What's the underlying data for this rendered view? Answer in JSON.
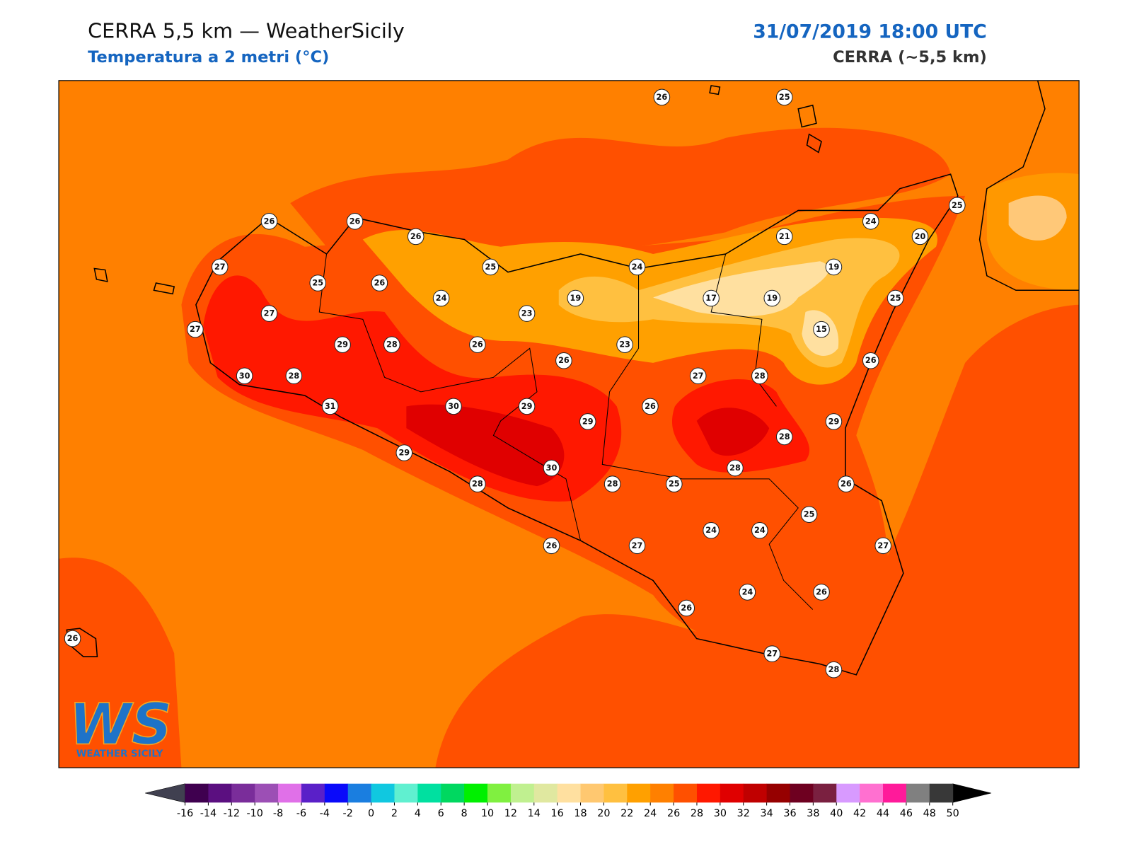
{
  "header": {
    "title": "CERRA 5,5 km — WeatherSicily",
    "subtitle": "Temperatura a 2 metri (°C)",
    "datetime": "31/07/2019 18:00 UTC",
    "model": "CERRA (~5,5 km)"
  },
  "stations": [
    26,
    25,
    26,
    26,
    26,
    25,
    24,
    21,
    20,
    27,
    25,
    24,
    19,
    25,
    26,
    24,
    19,
    17,
    19,
    25,
    27,
    23,
    27,
    15,
    29,
    28,
    26,
    23,
    26,
    26,
    30,
    28,
    27,
    28,
    31,
    30,
    29,
    26,
    29,
    29,
    28,
    29,
    30,
    28,
    28,
    28,
    25,
    26,
    25,
    24,
    24,
    26,
    27,
    27,
    24,
    26,
    26,
    26,
    27,
    28
  ],
  "colorbar": {
    "ticks": [
      -16,
      -14,
      -12,
      -10,
      -8,
      -6,
      -4,
      -2,
      0,
      2,
      4,
      6,
      8,
      10,
      12,
      14,
      16,
      18,
      20,
      22,
      24,
      26,
      28,
      30,
      32,
      34,
      36,
      38,
      40,
      42,
      44,
      46,
      48,
      50
    ],
    "colors": [
      "#3f004f",
      "#5b0f80",
      "#7a2d9a",
      "#9c4fb5",
      "#e070e8",
      "#5a20c8",
      "#0a0afa",
      "#1a7ee0",
      "#10c8e0",
      "#60f0d0",
      "#00e0a0",
      "#00d860",
      "#00f000",
      "#80f040",
      "#c0f090",
      "#e0e8a0",
      "#ffe0a0",
      "#ffc870",
      "#ffc040",
      "#ffa000",
      "#ff8000",
      "#ff5000",
      "#ff1800",
      "#e00000",
      "#c00000",
      "#960000",
      "#6e0020",
      "#7a2040",
      "#d89aff",
      "#ff70d0",
      "#ff1a9a",
      "#808080",
      "#383838"
    ],
    "under_color": "#404050",
    "over_color": "#000000"
  },
  "logo": {
    "text": "WS",
    "caption": "Weather Sicily"
  }
}
